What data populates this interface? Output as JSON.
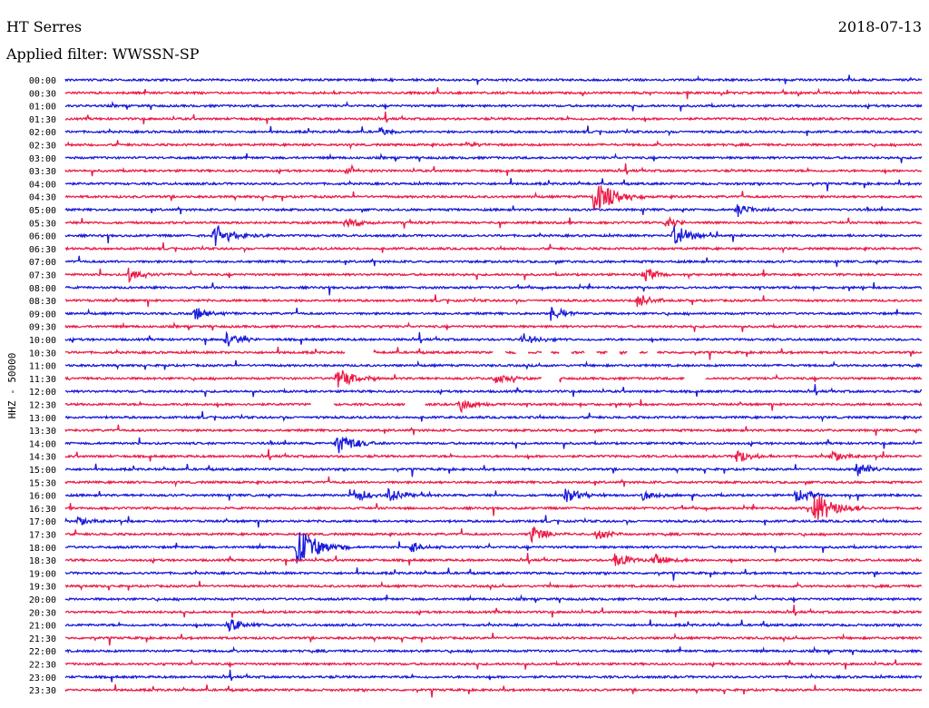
{
  "header": {
    "station": "HT Serres",
    "date": "2018-07-13",
    "filter_text": "Applied filter: WWSSN-SP"
  },
  "colors": {
    "trace_a": "#1a1adb",
    "trace_b": "#ec1c48",
    "text": "#000000",
    "background": "#ffffff"
  },
  "chart_data": {
    "type": "line",
    "title": "HT Serres",
    "subtitle": "Applied filter: WWSSN-SP",
    "date": "2018-07-13",
    "ylabel": "HHZ - 50000",
    "xlabel": "",
    "row_labels": [
      "00:00",
      "00:30",
      "01:00",
      "01:30",
      "02:00",
      "02:30",
      "03:00",
      "03:30",
      "04:00",
      "04:30",
      "05:00",
      "05:30",
      "06:00",
      "06:30",
      "07:00",
      "07:30",
      "08:00",
      "08:30",
      "09:00",
      "09:30",
      "10:00",
      "10:30",
      "11:00",
      "11:30",
      "12:00",
      "12:30",
      "13:00",
      "13:30",
      "14:00",
      "14:30",
      "15:00",
      "15:30",
      "16:00",
      "16:30",
      "17:00",
      "17:30",
      "18:00",
      "18:30",
      "19:00",
      "19:30",
      "20:00",
      "20:30",
      "21:00",
      "21:30",
      "22:00",
      "22:30",
      "23:00",
      "23:30"
    ],
    "row_minutes": 30,
    "row_colors_alternate": [
      "trace_a",
      "trace_b"
    ],
    "events": [
      {
        "row": 4,
        "minute": 11.0,
        "amp": 0.35
      },
      {
        "row": 5,
        "minute": 14.0,
        "amp": 0.25
      },
      {
        "row": 7,
        "minute": 9.8,
        "amp": 0.3
      },
      {
        "row": 9,
        "minute": 18.5,
        "amp": 1.4
      },
      {
        "row": 10,
        "minute": 23.5,
        "amp": 0.6
      },
      {
        "row": 11,
        "minute": 9.8,
        "amp": 0.5
      },
      {
        "row": 11,
        "minute": 21.0,
        "amp": 0.45
      },
      {
        "row": 12,
        "minute": 5.2,
        "amp": 1.0
      },
      {
        "row": 12,
        "minute": 21.3,
        "amp": 1.0
      },
      {
        "row": 15,
        "minute": 2.2,
        "amp": 0.6
      },
      {
        "row": 15,
        "minute": 20.2,
        "amp": 0.6
      },
      {
        "row": 17,
        "minute": 20.0,
        "amp": 0.6
      },
      {
        "row": 18,
        "minute": 4.5,
        "amp": 0.6
      },
      {
        "row": 18,
        "minute": 17.0,
        "amp": 0.6
      },
      {
        "row": 20,
        "minute": 5.6,
        "amp": 0.6
      },
      {
        "row": 20,
        "minute": 16.0,
        "amp": 0.6
      },
      {
        "row": 23,
        "minute": 9.5,
        "amp": 0.9
      },
      {
        "row": 23,
        "minute": 15.0,
        "amp": 0.5
      },
      {
        "row": 25,
        "minute": 13.8,
        "amp": 0.7
      },
      {
        "row": 28,
        "minute": 9.5,
        "amp": 1.0
      },
      {
        "row": 29,
        "minute": 23.5,
        "amp": 0.6
      },
      {
        "row": 29,
        "minute": 26.8,
        "amp": 0.6
      },
      {
        "row": 30,
        "minute": 27.7,
        "amp": 0.6
      },
      {
        "row": 32,
        "minute": 10.1,
        "amp": 0.6
      },
      {
        "row": 32,
        "minute": 11.3,
        "amp": 0.6
      },
      {
        "row": 32,
        "minute": 17.5,
        "amp": 0.7
      },
      {
        "row": 32,
        "minute": 20.2,
        "amp": 0.5
      },
      {
        "row": 32,
        "minute": 25.6,
        "amp": 0.6
      },
      {
        "row": 33,
        "minute": 26.2,
        "amp": 1.3
      },
      {
        "row": 34,
        "minute": 0.4,
        "amp": 0.5
      },
      {
        "row": 35,
        "minute": 16.3,
        "amp": 0.8
      },
      {
        "row": 35,
        "minute": 18.6,
        "amp": 0.5
      },
      {
        "row": 36,
        "minute": 8.1,
        "amp": 1.5
      },
      {
        "row": 36,
        "minute": 12.1,
        "amp": 0.5
      },
      {
        "row": 37,
        "minute": 19.2,
        "amp": 0.7
      },
      {
        "row": 37,
        "minute": 20.6,
        "amp": 0.6
      },
      {
        "row": 42,
        "minute": 5.7,
        "amp": 0.7
      }
    ],
    "gaps": [
      {
        "row": 21,
        "from": 9.8,
        "to": 10.8
      },
      {
        "row": 21,
        "from": 15.0,
        "to": 15.4
      },
      {
        "row": 21,
        "from": 15.8,
        "to": 16.2
      },
      {
        "row": 21,
        "from": 16.7,
        "to": 17.0
      },
      {
        "row": 21,
        "from": 17.3,
        "to": 17.7
      },
      {
        "row": 21,
        "from": 18.2,
        "to": 18.6
      },
      {
        "row": 21,
        "from": 19.0,
        "to": 19.4
      },
      {
        "row": 21,
        "from": 19.7,
        "to": 20.1
      },
      {
        "row": 21,
        "from": 20.4,
        "to": 20.7
      },
      {
        "row": 23,
        "from": 16.7,
        "to": 17.3
      },
      {
        "row": 23,
        "from": 21.7,
        "to": 22.4
      },
      {
        "row": 25,
        "from": 8.6,
        "to": 9.4
      },
      {
        "row": 25,
        "from": 11.9,
        "to": 12.6
      }
    ],
    "grid": false,
    "legend": "none"
  }
}
